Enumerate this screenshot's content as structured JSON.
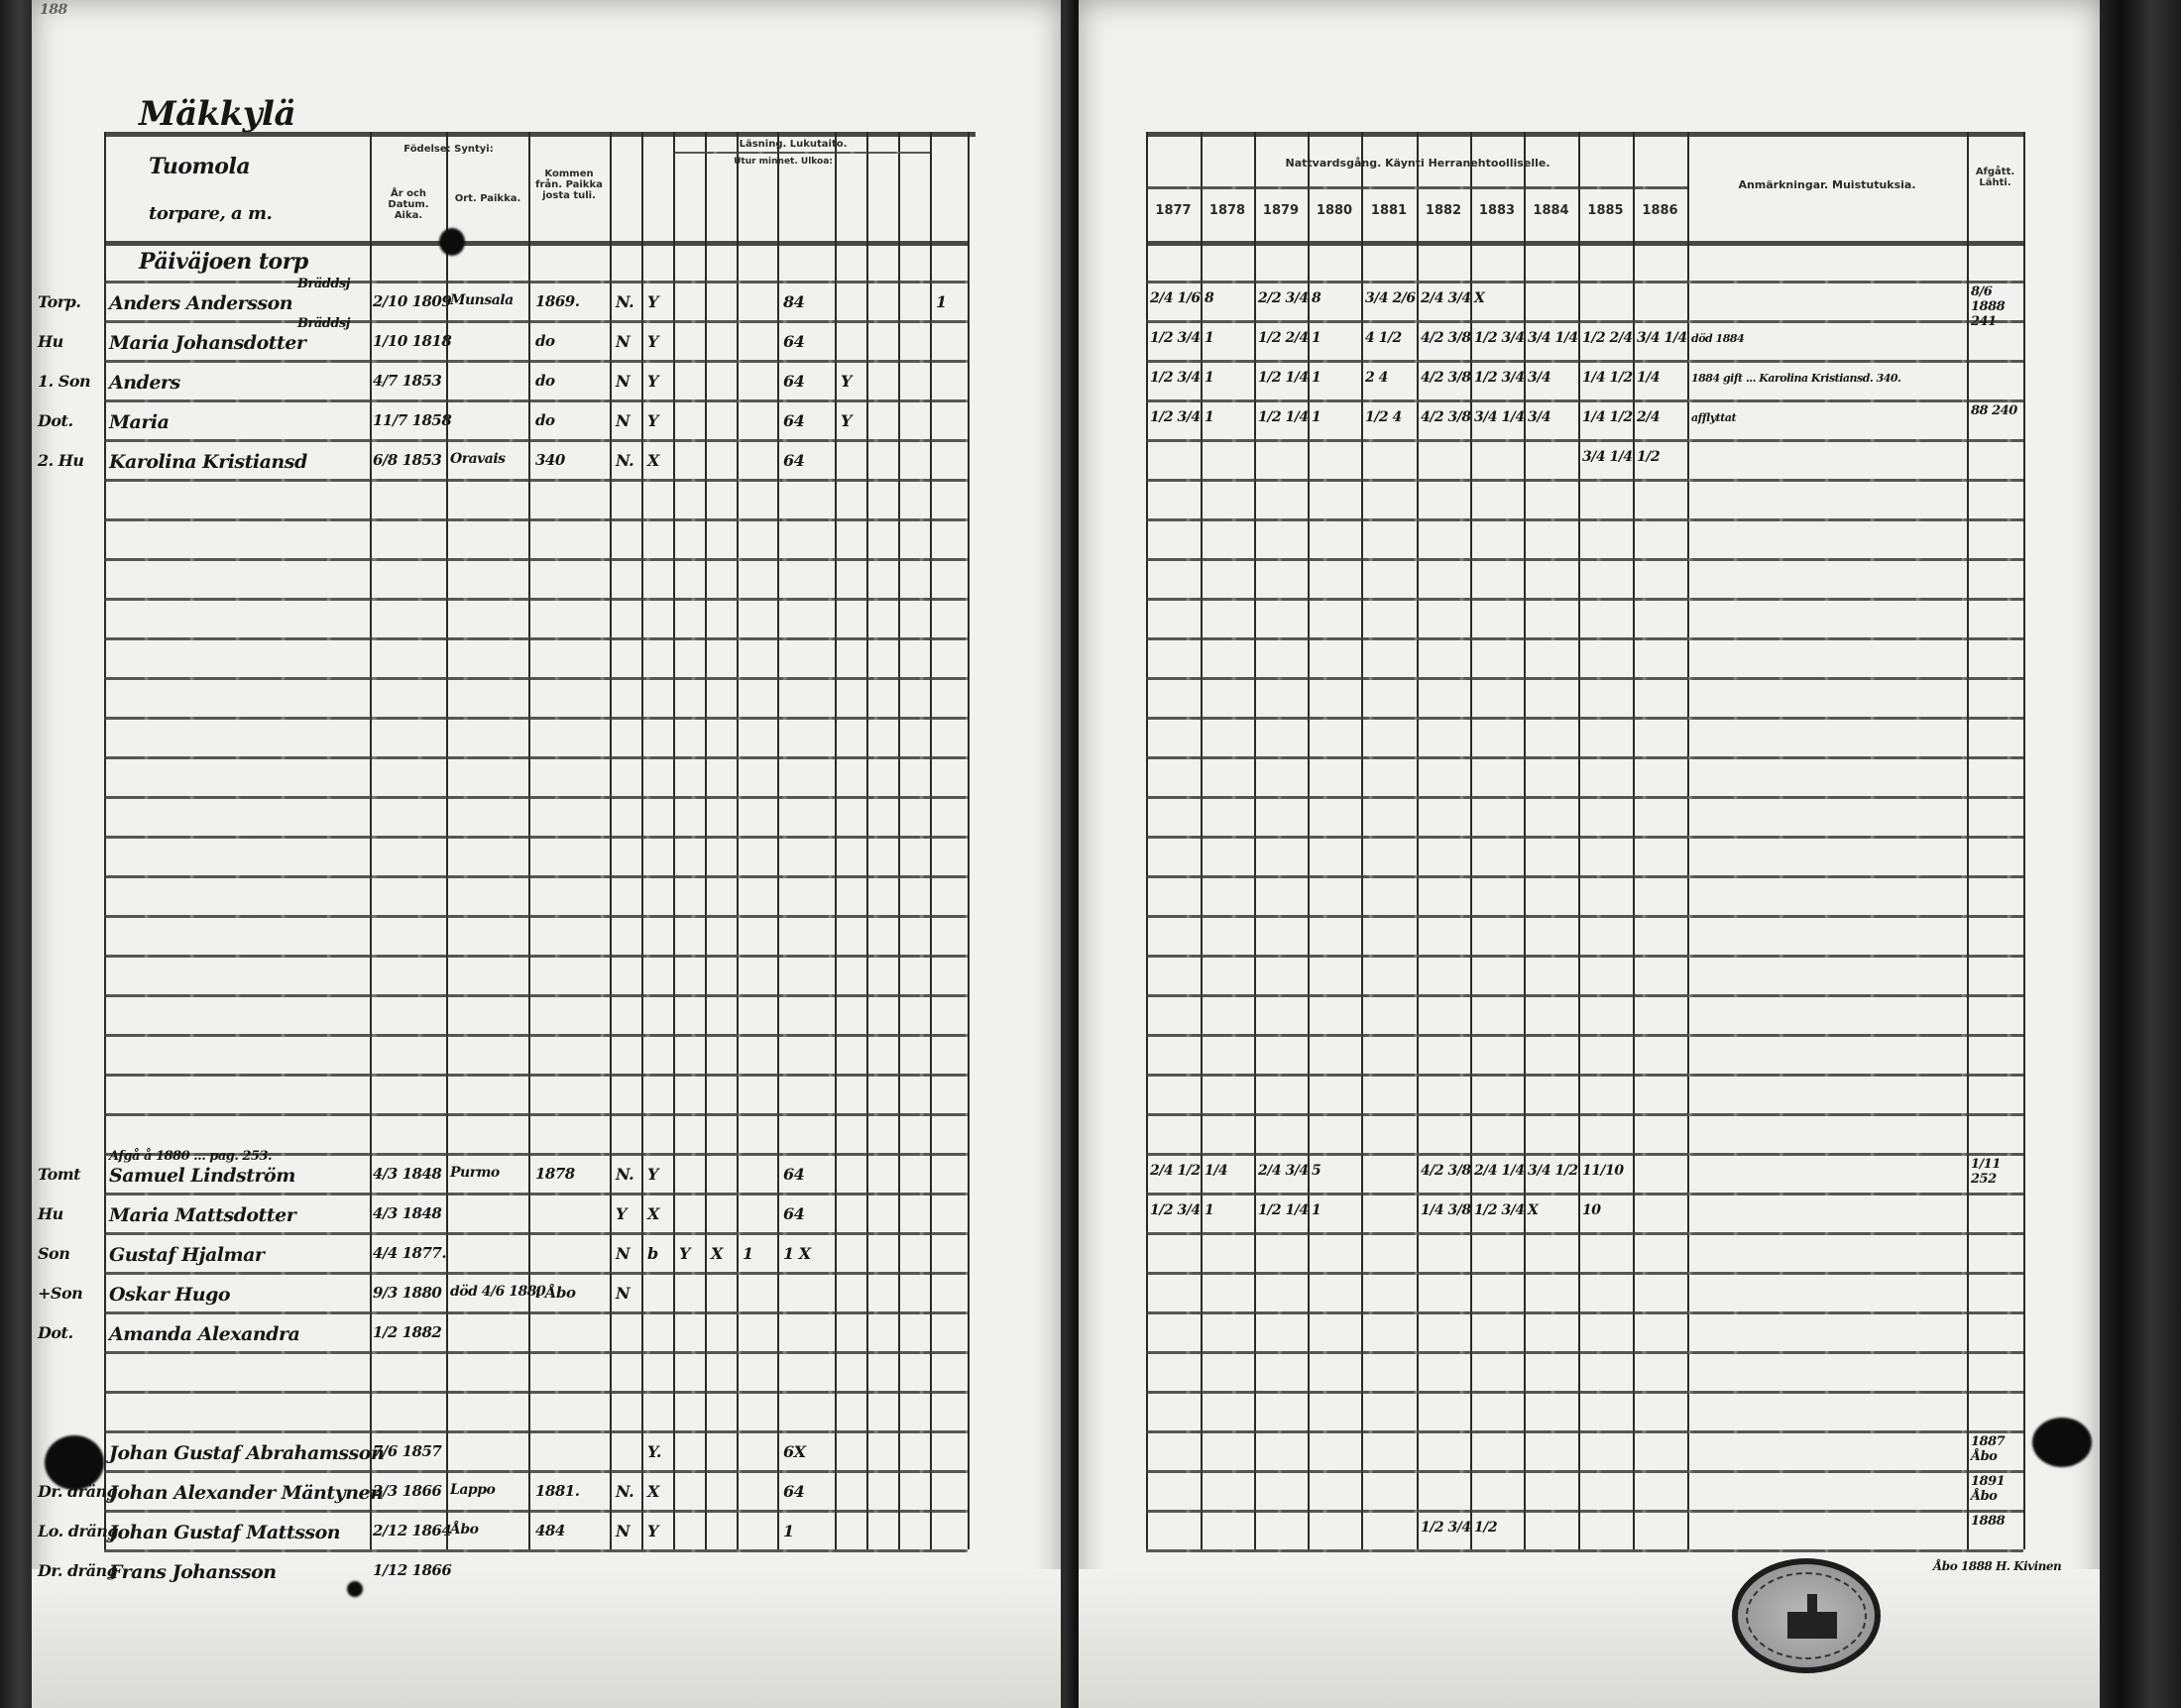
{
  "page_number": "188",
  "village": "Mäkkylä",
  "left_header": {
    "name_col_line1": "Tuomola",
    "name_col_line2": "torpare, a m.",
    "birth": "Födelse: Syntyi:",
    "birth_date": "År och Datum. Aika.",
    "birth_place": "Ort. Paikka.",
    "came_from": "Kommen från. Paikka josta tuli.",
    "reading": "Läsning. Lukutaito.",
    "by_heart": "Utur minnet. Ulkoa:"
  },
  "section_title": "Päiväjoen torp",
  "rows": [
    {
      "role": "Torp.",
      "name": "Anders Andersson",
      "note": "Bräddsj",
      "date": "2/10 1809",
      "place": "Munsala",
      "came": "1869.",
      "reading": [
        "N.",
        "Y",
        "",
        "",
        "",
        "84",
        "",
        "",
        "",
        "1"
      ],
      "years": [
        "2/4 1/6",
        "8",
        "2/2 3/4",
        "8",
        "3/4 2/6",
        "2/4 3/4",
        "X",
        "",
        "",
        ""
      ],
      "remark": "",
      "left": "8/6 1888 241"
    },
    {
      "role": "Hu",
      "name": "Maria Johansdotter",
      "note": "Bräddsj",
      "date": "1/10 1818",
      "place": "",
      "came": "do",
      "reading": [
        "N",
        "Y",
        "",
        "",
        "",
        "64",
        "",
        "",
        "",
        ""
      ],
      "years": [
        "1/2 3/4",
        "1",
        "1/2 2/4",
        "1",
        "4 1/2",
        "4/2 3/8",
        "1/2 3/4",
        "3/4 1/4",
        "1/2 2/4",
        "3/4 1/4"
      ],
      "remark": "död 1884",
      "left": ""
    },
    {
      "role": "1. Son",
      "name": "Anders",
      "note": "",
      "date": "4/7 1853",
      "place": "",
      "came": "do",
      "reading": [
        "N",
        "Y",
        "",
        "",
        "",
        "64",
        "Y",
        "",
        "",
        ""
      ],
      "years": [
        "1/2 3/4",
        "1",
        "1/2 1/4",
        "1",
        "2 4",
        "4/2 3/8",
        "1/2 3/4",
        "3/4",
        "1/4 1/2",
        "1/4"
      ],
      "remark": "1884 gift ... Karolina Kristiansd. 340.",
      "left": ""
    },
    {
      "role": "Dot.",
      "name": "Maria",
      "note": "",
      "date": "11/7 1858",
      "place": "",
      "came": "do",
      "reading": [
        "N",
        "Y",
        "",
        "",
        "",
        "64",
        "Y",
        "",
        "",
        ""
      ],
      "years": [
        "1/2 3/4",
        "1",
        "1/2 1/4",
        "1",
        "1/2 4",
        "4/2 3/8",
        "3/4 1/4",
        "3/4",
        "1/4 1/2",
        "2/4"
      ],
      "remark": "afflyttat",
      "left": "88 240"
    },
    {
      "role": "2. Hu",
      "name": "Karolina Kristiansd",
      "note": "",
      "date": "6/8 1853",
      "place": "Oravais",
      "came": "340",
      "reading": [
        "N.",
        "X",
        "",
        "",
        "",
        "64",
        "",
        "",
        "",
        ""
      ],
      "years": [
        "",
        "",
        "",
        "",
        "",
        "",
        "",
        "",
        "3/4 1/4",
        "1/2"
      ],
      "remark": "",
      "left": ""
    },
    {
      "role": "Tomt",
      "name": "Samuel Lindström",
      "note": "Afgå å 1880 ... pag. 253.",
      "date": "4/3 1848",
      "place": "Purmo",
      "came": "1878",
      "reading": [
        "N.",
        "Y",
        "",
        "",
        "",
        "64",
        "",
        "",
        "",
        ""
      ],
      "years": [
        "2/4 1/2",
        "1/4",
        "2/4 3/4",
        "5",
        "",
        "4/2 3/8",
        "2/4 1/4",
        "3/4 1/2",
        "11/10",
        ""
      ],
      "remark": "",
      "left": "1/11 252"
    },
    {
      "role": "Hu",
      "name": "Maria Mattsdotter",
      "note": "",
      "date": "4/3 1848",
      "place": "",
      "came": "",
      "reading": [
        "Y",
        "X",
        "",
        "",
        "",
        "64",
        "",
        "",
        "",
        ""
      ],
      "years": [
        "1/2 3/4",
        "1",
        "1/2 1/4",
        "1",
        "",
        "1/4 3/8",
        "1/2 3/4",
        "X",
        "10",
        ""
      ],
      "remark": "",
      "left": ""
    },
    {
      "role": "Son",
      "name": "Gustaf Hjalmar",
      "note": "",
      "date": "4/4 1877.",
      "place": "",
      "came": "",
      "reading": [
        "N",
        "b",
        "Y",
        "X",
        "1",
        "1 X",
        "",
        "",
        "",
        ""
      ],
      "years": [
        "",
        "",
        "",
        "",
        "",
        "",
        "",
        "",
        "",
        ""
      ],
      "remark": "",
      "left": ""
    },
    {
      "role": "+Son",
      "name": "Oskar Hugo",
      "note": "",
      "date": "9/3 1880",
      "place": "död 4/6 1880",
      "came": "i Åbo",
      "reading": [
        "N",
        "",
        "",
        "",
        "",
        "",
        "",
        "",
        "",
        ""
      ],
      "years": [
        "",
        "",
        "",
        "",
        "",
        "",
        "",
        "",
        "",
        ""
      ],
      "remark": "",
      "left": ""
    },
    {
      "role": "Dot.",
      "name": "Amanda Alexandra",
      "note": "",
      "date": "1/2 1882",
      "place": "",
      "came": "",
      "reading": [
        "",
        "",
        "",
        "",
        "",
        "",
        "",
        "",
        "",
        ""
      ],
      "years": [
        "",
        "",
        "",
        "",
        "",
        "",
        "",
        "",
        "",
        ""
      ],
      "remark": "",
      "left": ""
    },
    {
      "role": "",
      "name": "Johan Gustaf Abrahamsson",
      "note": "",
      "date": "7/6 1857",
      "place": "",
      "came": "",
      "reading": [
        "",
        "Y.",
        "",
        "",
        "",
        "6X",
        "",
        "",
        "",
        ""
      ],
      "years": [
        "",
        "",
        "",
        "",
        "",
        "",
        "",
        "",
        "",
        ""
      ],
      "remark": "",
      "left": "1887 Åbo"
    },
    {
      "role": "Dr. dräng",
      "name": "Johan Alexander Mäntynen",
      "note": "",
      "date": "2/3 1866",
      "place": "Lappo",
      "came": "1881.",
      "reading": [
        "N.",
        "X",
        "",
        "",
        "",
        "64",
        "",
        "",
        "",
        ""
      ],
      "years": [
        "",
        "",
        "",
        "",
        "",
        "",
        "",
        "",
        "",
        ""
      ],
      "remark": "",
      "left": "1891 Åbo"
    },
    {
      "role": "Lo. dräng",
      "name": "Johan Gustaf Mattsson",
      "note": "",
      "date": "2/12 1864",
      "place": "Åbo",
      "came": "484",
      "reading": [
        "N",
        "Y",
        "",
        "",
        "",
        "1",
        "",
        "",
        "",
        ""
      ],
      "years": [
        "",
        "",
        "",
        "",
        "",
        "1/2 3/4",
        "1/2",
        "",
        "",
        ""
      ],
      "remark": "",
      "left": "1888"
    },
    {
      "role": "Dr. dräng",
      "name": "Frans Johansson",
      "note": "",
      "date": "1/12 1866",
      "place": "",
      "came": "",
      "reading": [
        "",
        "",
        "",
        "",
        "",
        "",
        "",
        "",
        "",
        ""
      ],
      "years": [
        "",
        "",
        "",
        "",
        "",
        "",
        "",
        "",
        "",
        ""
      ],
      "remark": "",
      "left": ""
    }
  ],
  "right_header": {
    "communion": "Nattvardsgång. Käynti Herranehtoolliselle.",
    "years": [
      "1877",
      "1878",
      "1879",
      "1880",
      "1881",
      "1882",
      "1883",
      "1884",
      "1885",
      "1886"
    ],
    "remarks": "Anmärkningar. Muistutuksia.",
    "departed": "Afgått. Lähti."
  },
  "footer_note_right": "Åbo 1888 H. Kivinen"
}
